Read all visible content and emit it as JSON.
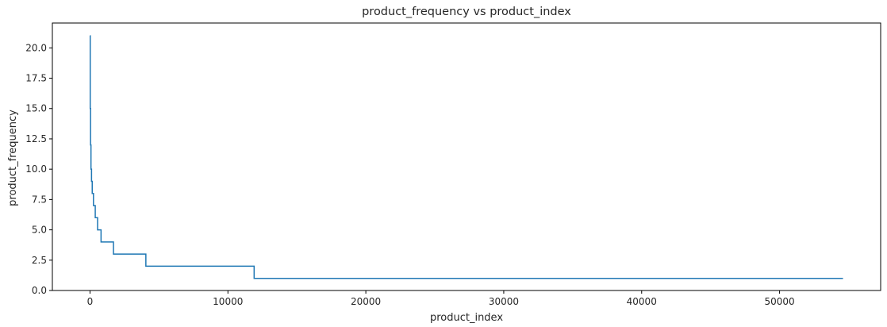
{
  "chart_data": {
    "type": "line",
    "title": "product_frequency vs product_index",
    "xlabel": "product_index",
    "ylabel": "product_frequency",
    "xlim": [
      -2730,
      57330
    ],
    "ylim": [
      0,
      22.05
    ],
    "xticks": [
      0,
      10000,
      20000,
      30000,
      40000,
      50000
    ],
    "xtick_labels": [
      "0",
      "10000",
      "20000",
      "30000",
      "40000",
      "50000"
    ],
    "yticks": [
      0,
      2.5,
      5,
      7.5,
      10,
      12.5,
      15,
      17.5,
      20
    ],
    "ytick_labels": [
      "0.0",
      "2.5",
      "5.0",
      "7.5",
      "10.0",
      "12.5",
      "15.0",
      "17.5",
      "20.0"
    ],
    "grid": false,
    "series": [
      {
        "color": "#1f77b4",
        "step": true,
        "x": [
          0,
          15,
          40,
          70,
          110,
          160,
          250,
          380,
          550,
          800,
          1700,
          4050,
          11900,
          54600
        ],
        "y": [
          21,
          15,
          12,
          10,
          9,
          8,
          7,
          6,
          5,
          4,
          3,
          2,
          1,
          1
        ]
      }
    ]
  }
}
